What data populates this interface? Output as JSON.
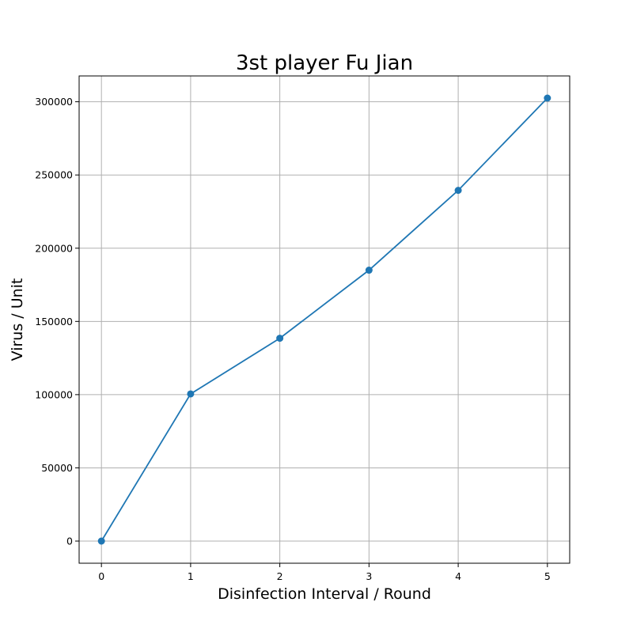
{
  "chart_data": {
    "type": "line",
    "title": "3st player Fu Jian",
    "xlabel": "Disinfection Interval / Round",
    "ylabel": "Virus / Unit",
    "x": [
      0,
      1,
      2,
      3,
      4,
      5
    ],
    "series": [
      {
        "values": [
          0,
          100500,
          138500,
          185000,
          239500,
          302500
        ],
        "color": "#1f77b4",
        "marker": "circle"
      }
    ],
    "xlim": [
      -0.25,
      5.25
    ],
    "ylim": [
      -15125,
      317625
    ],
    "xticks": [
      0,
      1,
      2,
      3,
      4,
      5
    ],
    "yticks": [
      0,
      50000,
      100000,
      150000,
      200000,
      250000,
      300000
    ],
    "grid": true
  }
}
